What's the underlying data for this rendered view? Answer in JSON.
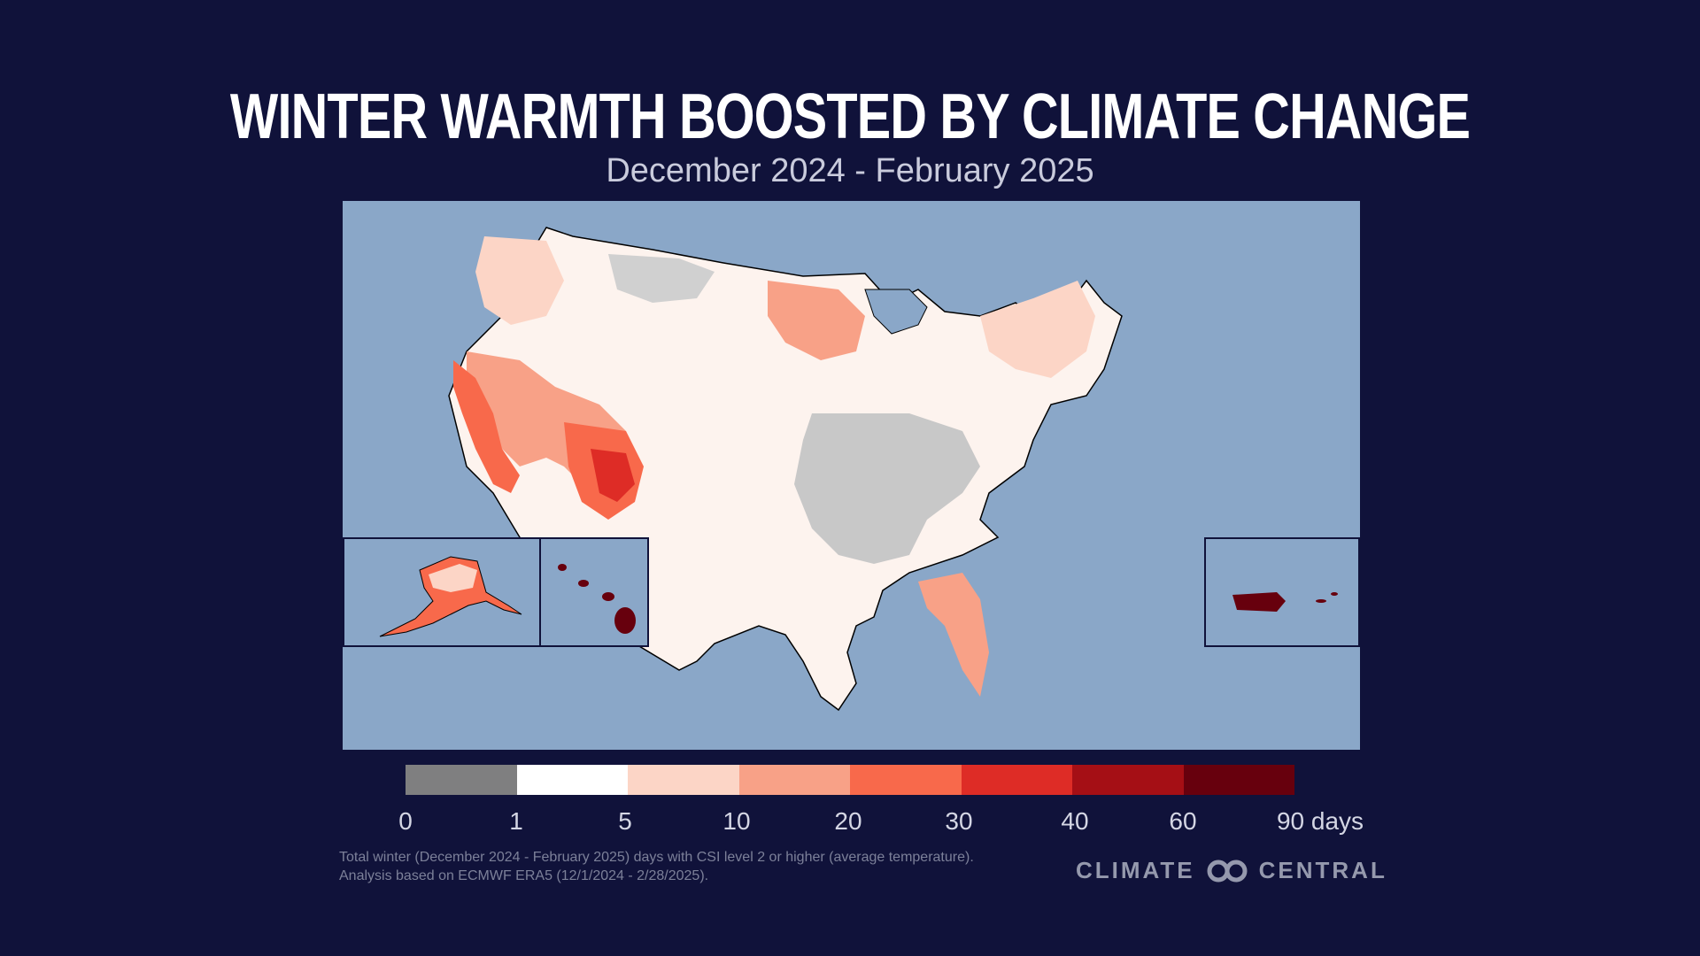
{
  "header": {
    "title": "WINTER WARMTH BOOSTED BY CLIMATE CHANGE",
    "subtitle": "December 2024 - February 2025"
  },
  "map": {
    "background_color": "#8aa7c8",
    "insets": [
      "alaska",
      "hawaii",
      "puerto-rico"
    ]
  },
  "legend": {
    "bins": [
      {
        "label": "0",
        "color": "#7f7f80"
      },
      {
        "label": "1",
        "color": "#ffffff"
      },
      {
        "label": "5",
        "color": "#fcd5c6"
      },
      {
        "label": "10",
        "color": "#f8a187"
      },
      {
        "label": "20",
        "color": "#f8694b"
      },
      {
        "label": "30",
        "color": "#de2c26"
      },
      {
        "label": "40",
        "color": "#a50f15"
      },
      {
        "label": "60",
        "color": "#67000d"
      }
    ],
    "end_label": "90 days"
  },
  "footnote": {
    "line1": "Total winter (December 2024 - February 2025) days with CSI level 2 or higher (average temperature).",
    "line2": "Analysis based on ECMWF ERA5 (12/1/2024 - 2/28/2025)."
  },
  "brand": {
    "left": "CLIMATE",
    "right": "CENTRAL"
  }
}
